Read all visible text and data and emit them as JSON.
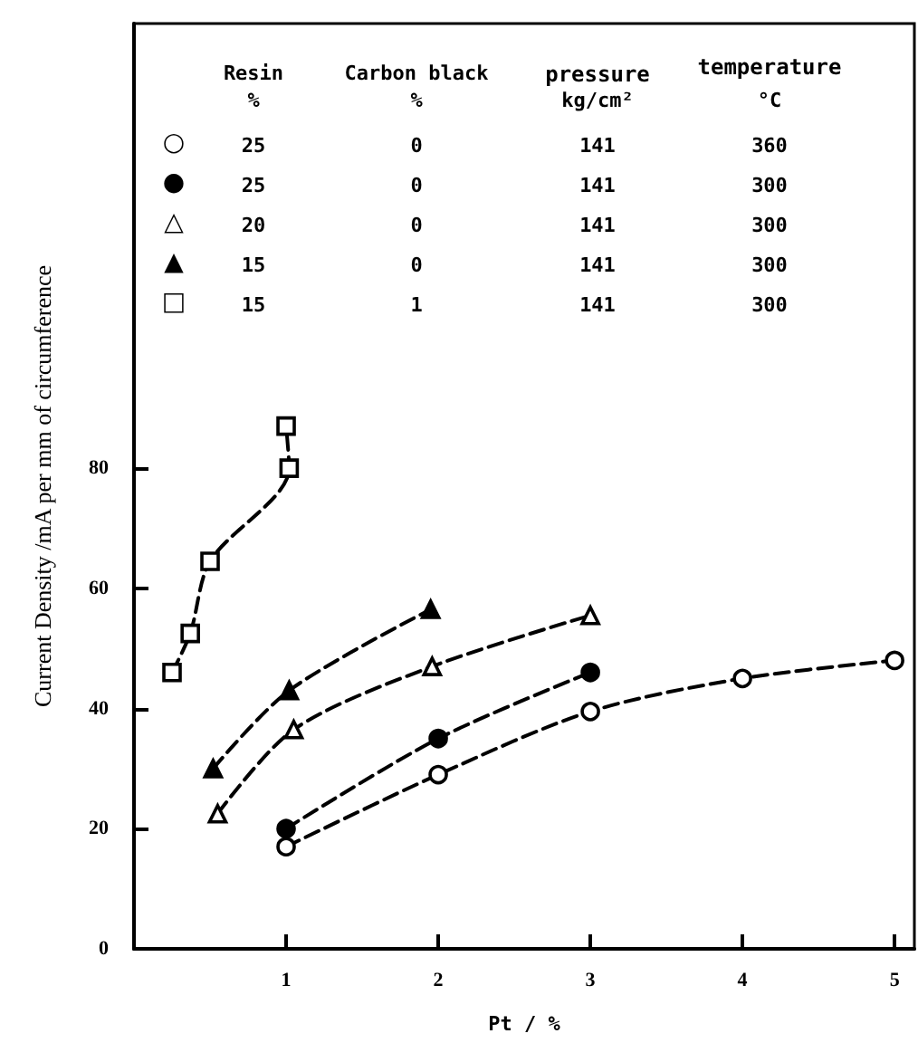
{
  "chart_data": {
    "type": "line",
    "xlabel": "Pt / %",
    "ylabel": "Current Density /mA per mm of circumference",
    "xlim": [
      0,
      5.13
    ],
    "xticks": [
      1,
      2,
      3,
      4,
      5
    ],
    "ylim": [
      0,
      154
    ],
    "yticks": [
      0,
      20,
      40,
      60,
      80
    ],
    "grid": false,
    "line_style": "dashed",
    "annotations": [
      "Resin",
      "Carbon black",
      "pressure",
      "temperature",
      "%",
      "%",
      "kg/cm²",
      "°C",
      "○",
      "25",
      "0",
      "141",
      "360",
      "●",
      "25",
      "0",
      "141",
      "300",
      "△",
      "20",
      "0",
      "141",
      "300",
      "▲",
      "15",
      "0",
      "141",
      "300",
      "□",
      "15",
      "1",
      "141",
      "300"
    ],
    "series": [
      {
        "marker": "circle",
        "color": "#ffffff",
        "x": [
          1,
          2,
          3,
          4,
          5
        ],
        "values": [
          17,
          29,
          39.5,
          45,
          48
        ]
      },
      {
        "marker": "circle",
        "color": "#000000",
        "x": [
          1,
          2,
          3
        ],
        "values": [
          20,
          35,
          46
        ]
      },
      {
        "marker": "triangle",
        "color": "#ffffff",
        "x": [
          0.55,
          1.05,
          1.96,
          3
        ],
        "values": [
          22.5,
          36.5,
          47,
          55.5
        ]
      },
      {
        "marker": "triangle",
        "color": "#000000",
        "x": [
          0.52,
          1.02,
          1.95
        ],
        "values": [
          30,
          43,
          56.5
        ]
      },
      {
        "marker": "square",
        "color": "#ffffff",
        "x": [
          0.25,
          0.37,
          0.5,
          1.02,
          1
        ],
        "values": [
          46,
          52.5,
          64.5,
          80,
          87
        ]
      }
    ]
  }
}
